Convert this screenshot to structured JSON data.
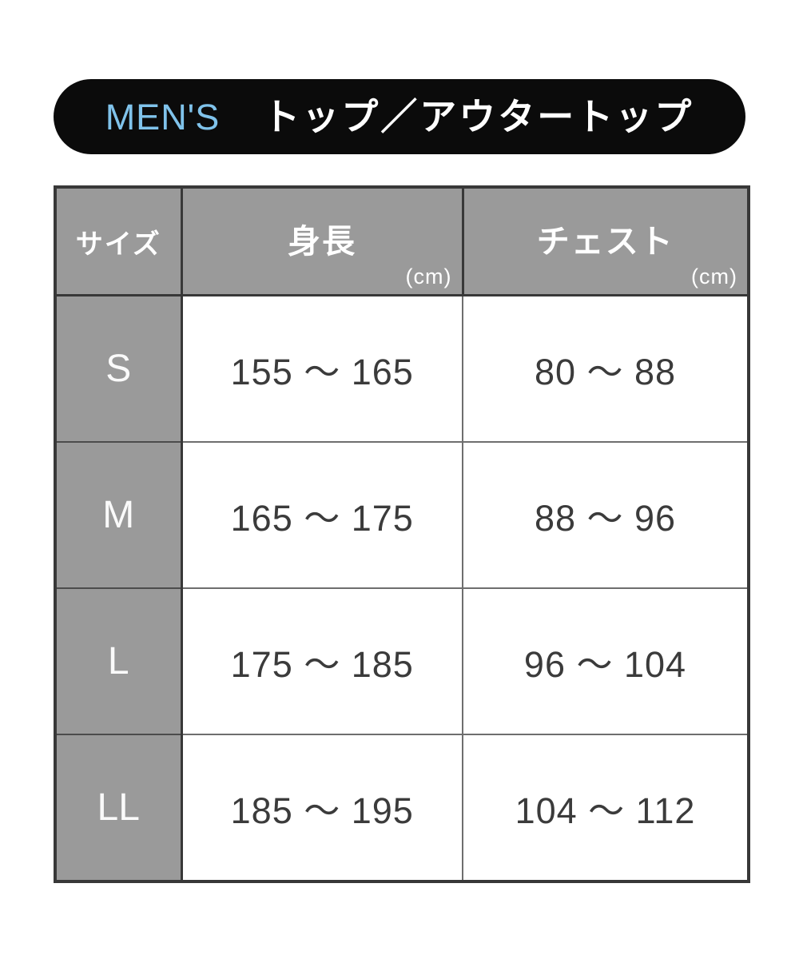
{
  "banner": {
    "category": "MEN'S",
    "title": "トップ／アウタートップ",
    "background_color": "#0b0b0b",
    "category_color": "#80C3EB",
    "title_color": "#ffffff"
  },
  "table": {
    "unit": "(cm)",
    "headers": {
      "size": "サイズ",
      "height": "身長",
      "chest": "チェスト"
    },
    "header_bg_color": "#9A9A9A",
    "header_text_color": "#ffffff",
    "border_color": "#383838",
    "value_text_color": "#3b3b3b",
    "rows": [
      {
        "size": "S",
        "height": "155 〜 165",
        "chest": "80 〜 88"
      },
      {
        "size": "M",
        "height": "165 〜 175",
        "chest": "88 〜 96"
      },
      {
        "size": "L",
        "height": "175 〜 185",
        "chest": "96 〜 104"
      },
      {
        "size": "LL",
        "height": "185 〜 195",
        "chest": "104 〜 112"
      }
    ]
  },
  "chart_data": {
    "type": "table",
    "title": "MEN'S トップ／アウタートップ",
    "columns": [
      "サイズ",
      "身長 (cm)",
      "チェスト (cm)"
    ],
    "rows": [
      [
        "S",
        "155〜165",
        "80〜88"
      ],
      [
        "M",
        "165〜175",
        "88〜96"
      ],
      [
        "L",
        "175〜185",
        "96〜104"
      ],
      [
        "LL",
        "185〜195",
        "104〜112"
      ]
    ]
  }
}
